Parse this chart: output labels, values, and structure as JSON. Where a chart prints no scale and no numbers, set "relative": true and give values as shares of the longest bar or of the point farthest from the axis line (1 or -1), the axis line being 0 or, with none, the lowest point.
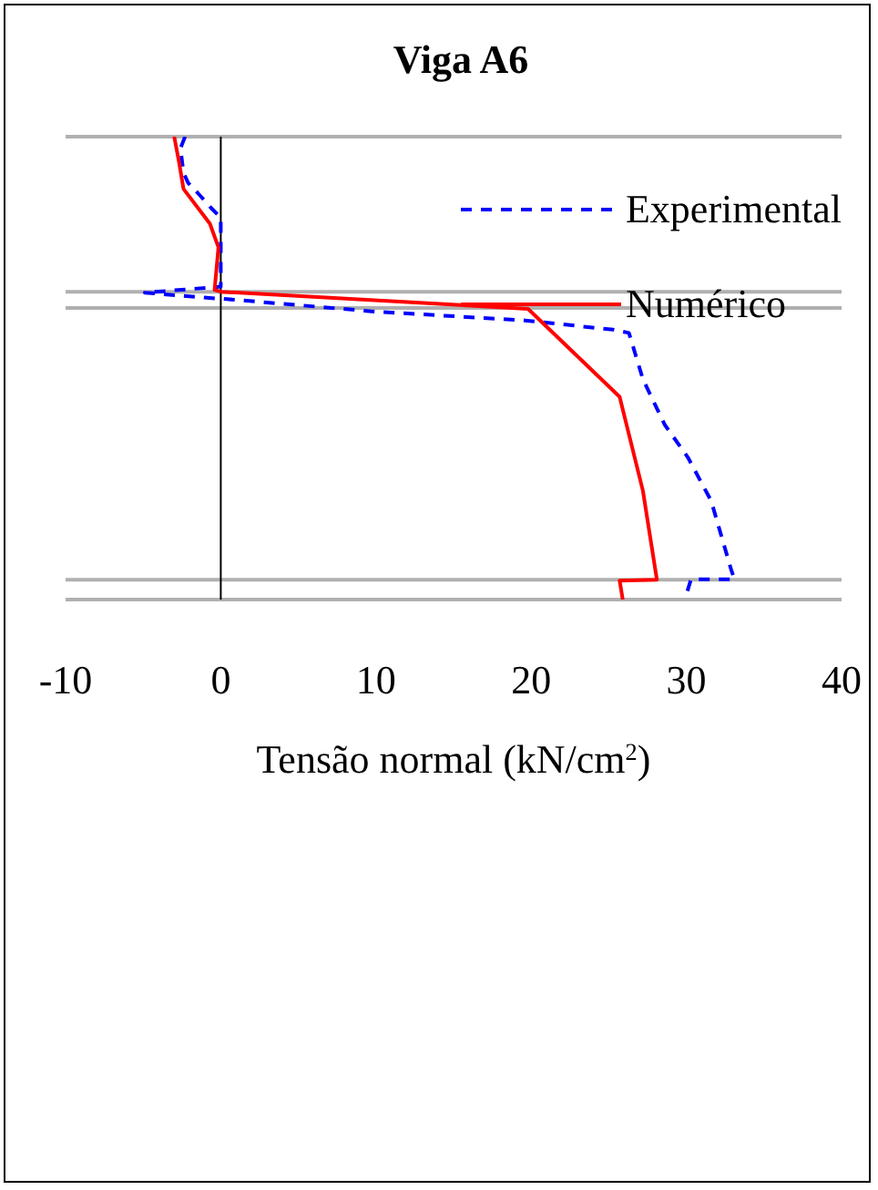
{
  "chart_data": {
    "type": "line",
    "title": "Viga A6",
    "xlabel": "Tensão normal (kN/cm$^{2}$)",
    "relative": true,
    "xlim": [
      -10,
      40
    ],
    "xticks": [
      -10,
      0,
      10,
      20,
      30,
      40
    ],
    "legend": "top right",
    "grid": false,
    "series": [
      {
        "name": "Experimental",
        "color": "#0000ff",
        "line_style": "dashed",
        "x": [
          -2.3,
          -2.6,
          -2.4,
          -2.1,
          -1.5,
          -0.65,
          0,
          0,
          -4.9,
          -0.9,
          0.4,
          10,
          19.6,
          25.3,
          26.3,
          27.2,
          28.6,
          30.1,
          31.6,
          32.9,
          33.1,
          30.3,
          29.9
        ],
        "values": [
          1.0,
          0.975,
          0.922,
          0.9,
          0.879,
          0.847,
          0.825,
          0.676,
          0.663,
          0.652,
          0.649,
          0.622,
          0.603,
          0.583,
          0.576,
          0.476,
          0.378,
          0.307,
          0.213,
          0.063,
          0.044,
          0.044,
          0
        ]
      },
      {
        "name": "Numérico",
        "color": "#ff0000",
        "line_style": "solid",
        "x": [
          -3.0,
          -2.7,
          -2.4,
          -0.7,
          -0.15,
          -0.4,
          0,
          19.8,
          25.7,
          27.2,
          28.1,
          25.7,
          25.9
        ],
        "values": [
          1.0,
          0.947,
          0.887,
          0.812,
          0.761,
          0.669,
          0.665,
          0.628,
          0.438,
          0.235,
          0.043,
          0.041,
          0
        ]
      }
    ],
    "ref_lines": [
      {
        "axis": "y",
        "value": 1,
        "color": "#b0b0b0"
      },
      {
        "axis": "y",
        "value": 0.665,
        "color": "#b0b0b0"
      },
      {
        "axis": "y",
        "value": 0.63,
        "color": "#b0b0b0"
      },
      {
        "axis": "y",
        "value": 0.043,
        "color": "#b0b0b0"
      },
      {
        "axis": "y",
        "value": 0,
        "color": "#b0b0b0"
      },
      {
        "axis": "x",
        "value": 0,
        "color": "#000000"
      }
    ]
  }
}
